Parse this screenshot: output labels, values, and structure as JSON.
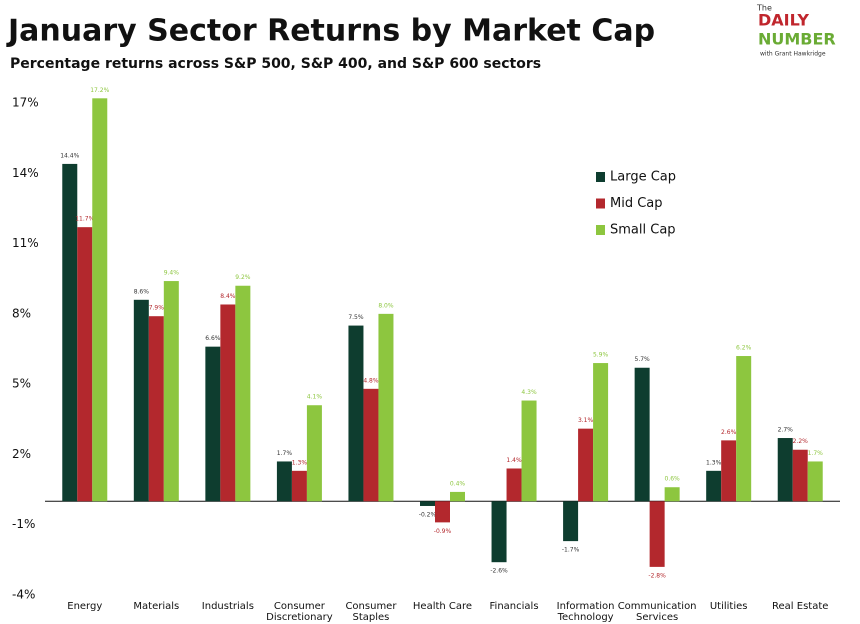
{
  "chart_data": {
    "type": "bar",
    "title": "January Sector Returns by Market Cap",
    "subtitle": "Percentage returns across S&P 500, S&P 400, and S&P 600 sectors",
    "categories": [
      "Energy",
      "Materials",
      "Industrials",
      "Consumer Discretionary",
      "Consumer Staples",
      "Health Care",
      "Financials",
      "Information Technology",
      "Communication Services",
      "Utilities",
      "Real Estate"
    ],
    "series": [
      {
        "name": "Large Cap",
        "color": "#0e3d2f",
        "values": [
          14.4,
          8.6,
          6.6,
          1.7,
          7.5,
          -0.2,
          -2.6,
          -1.7,
          5.7,
          1.3,
          2.7
        ],
        "value_labels": [
          "14.4%",
          "8.6%",
          "6.6%",
          "1.7%",
          "7.5%",
          "-0.2%",
          "-2.6%",
          "-1.7%",
          "5.7%",
          "1.3%",
          "2.7%"
        ]
      },
      {
        "name": "Mid Cap",
        "color": "#b3282d",
        "values": [
          11.7,
          7.9,
          8.4,
          1.3,
          4.8,
          -0.9,
          1.4,
          3.1,
          -2.8,
          2.6,
          2.2
        ],
        "value_labels": [
          "11.7%",
          "7.9%",
          "8.4%",
          "1.3%",
          "4.8%",
          "-0.9%",
          "1.4%",
          "3.1%",
          "-2.8%",
          "2.6%",
          "2.2%"
        ]
      },
      {
        "name": "Small Cap",
        "color": "#8dc63f",
        "values": [
          17.2,
          9.4,
          9.2,
          4.1,
          8.0,
          0.4,
          4.3,
          5.9,
          0.6,
          6.2,
          1.7
        ],
        "value_labels": [
          "17.2%",
          "9.4%",
          "9.2%",
          "4.1%",
          "8.0%",
          "0.4%",
          "4.3%",
          "5.9%",
          "0.6%",
          "6.2%",
          "1.7%"
        ]
      }
    ],
    "ylim": [
      -4,
      17
    ],
    "yticks": [
      {
        "value": -4,
        "label": "-4%"
      },
      {
        "value": -1,
        "label": "-1%"
      },
      {
        "value": 2,
        "label": "2%"
      },
      {
        "value": 5,
        "label": "5%"
      },
      {
        "value": 8,
        "label": "8%"
      },
      {
        "value": 11,
        "label": "11%"
      },
      {
        "value": 14,
        "label": "14%"
      },
      {
        "value": 17,
        "label": "17%"
      }
    ],
    "legend": "upper right"
  },
  "logo": {
    "top": "The",
    "line1": "DAILY",
    "line2": "NUMBER",
    "byline": "with Grant Hawkridge"
  }
}
